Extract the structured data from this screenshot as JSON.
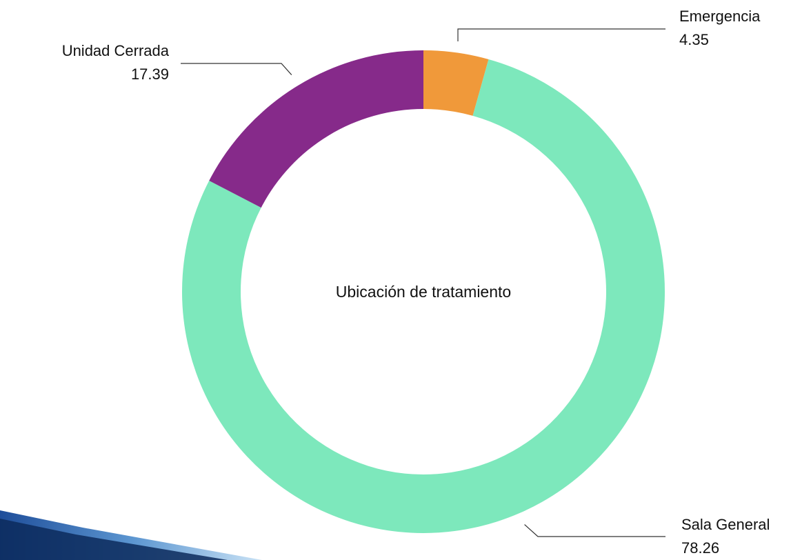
{
  "chart_data": {
    "type": "donut",
    "title": "Ubicación de tratamiento",
    "categories": [
      "Emergencia",
      "Sala General",
      "Unidad Cerrada"
    ],
    "values": [
      4.35,
      78.26,
      17.39
    ],
    "colors": [
      "#f0993a",
      "#7de8bc",
      "#862a8a"
    ]
  }
}
